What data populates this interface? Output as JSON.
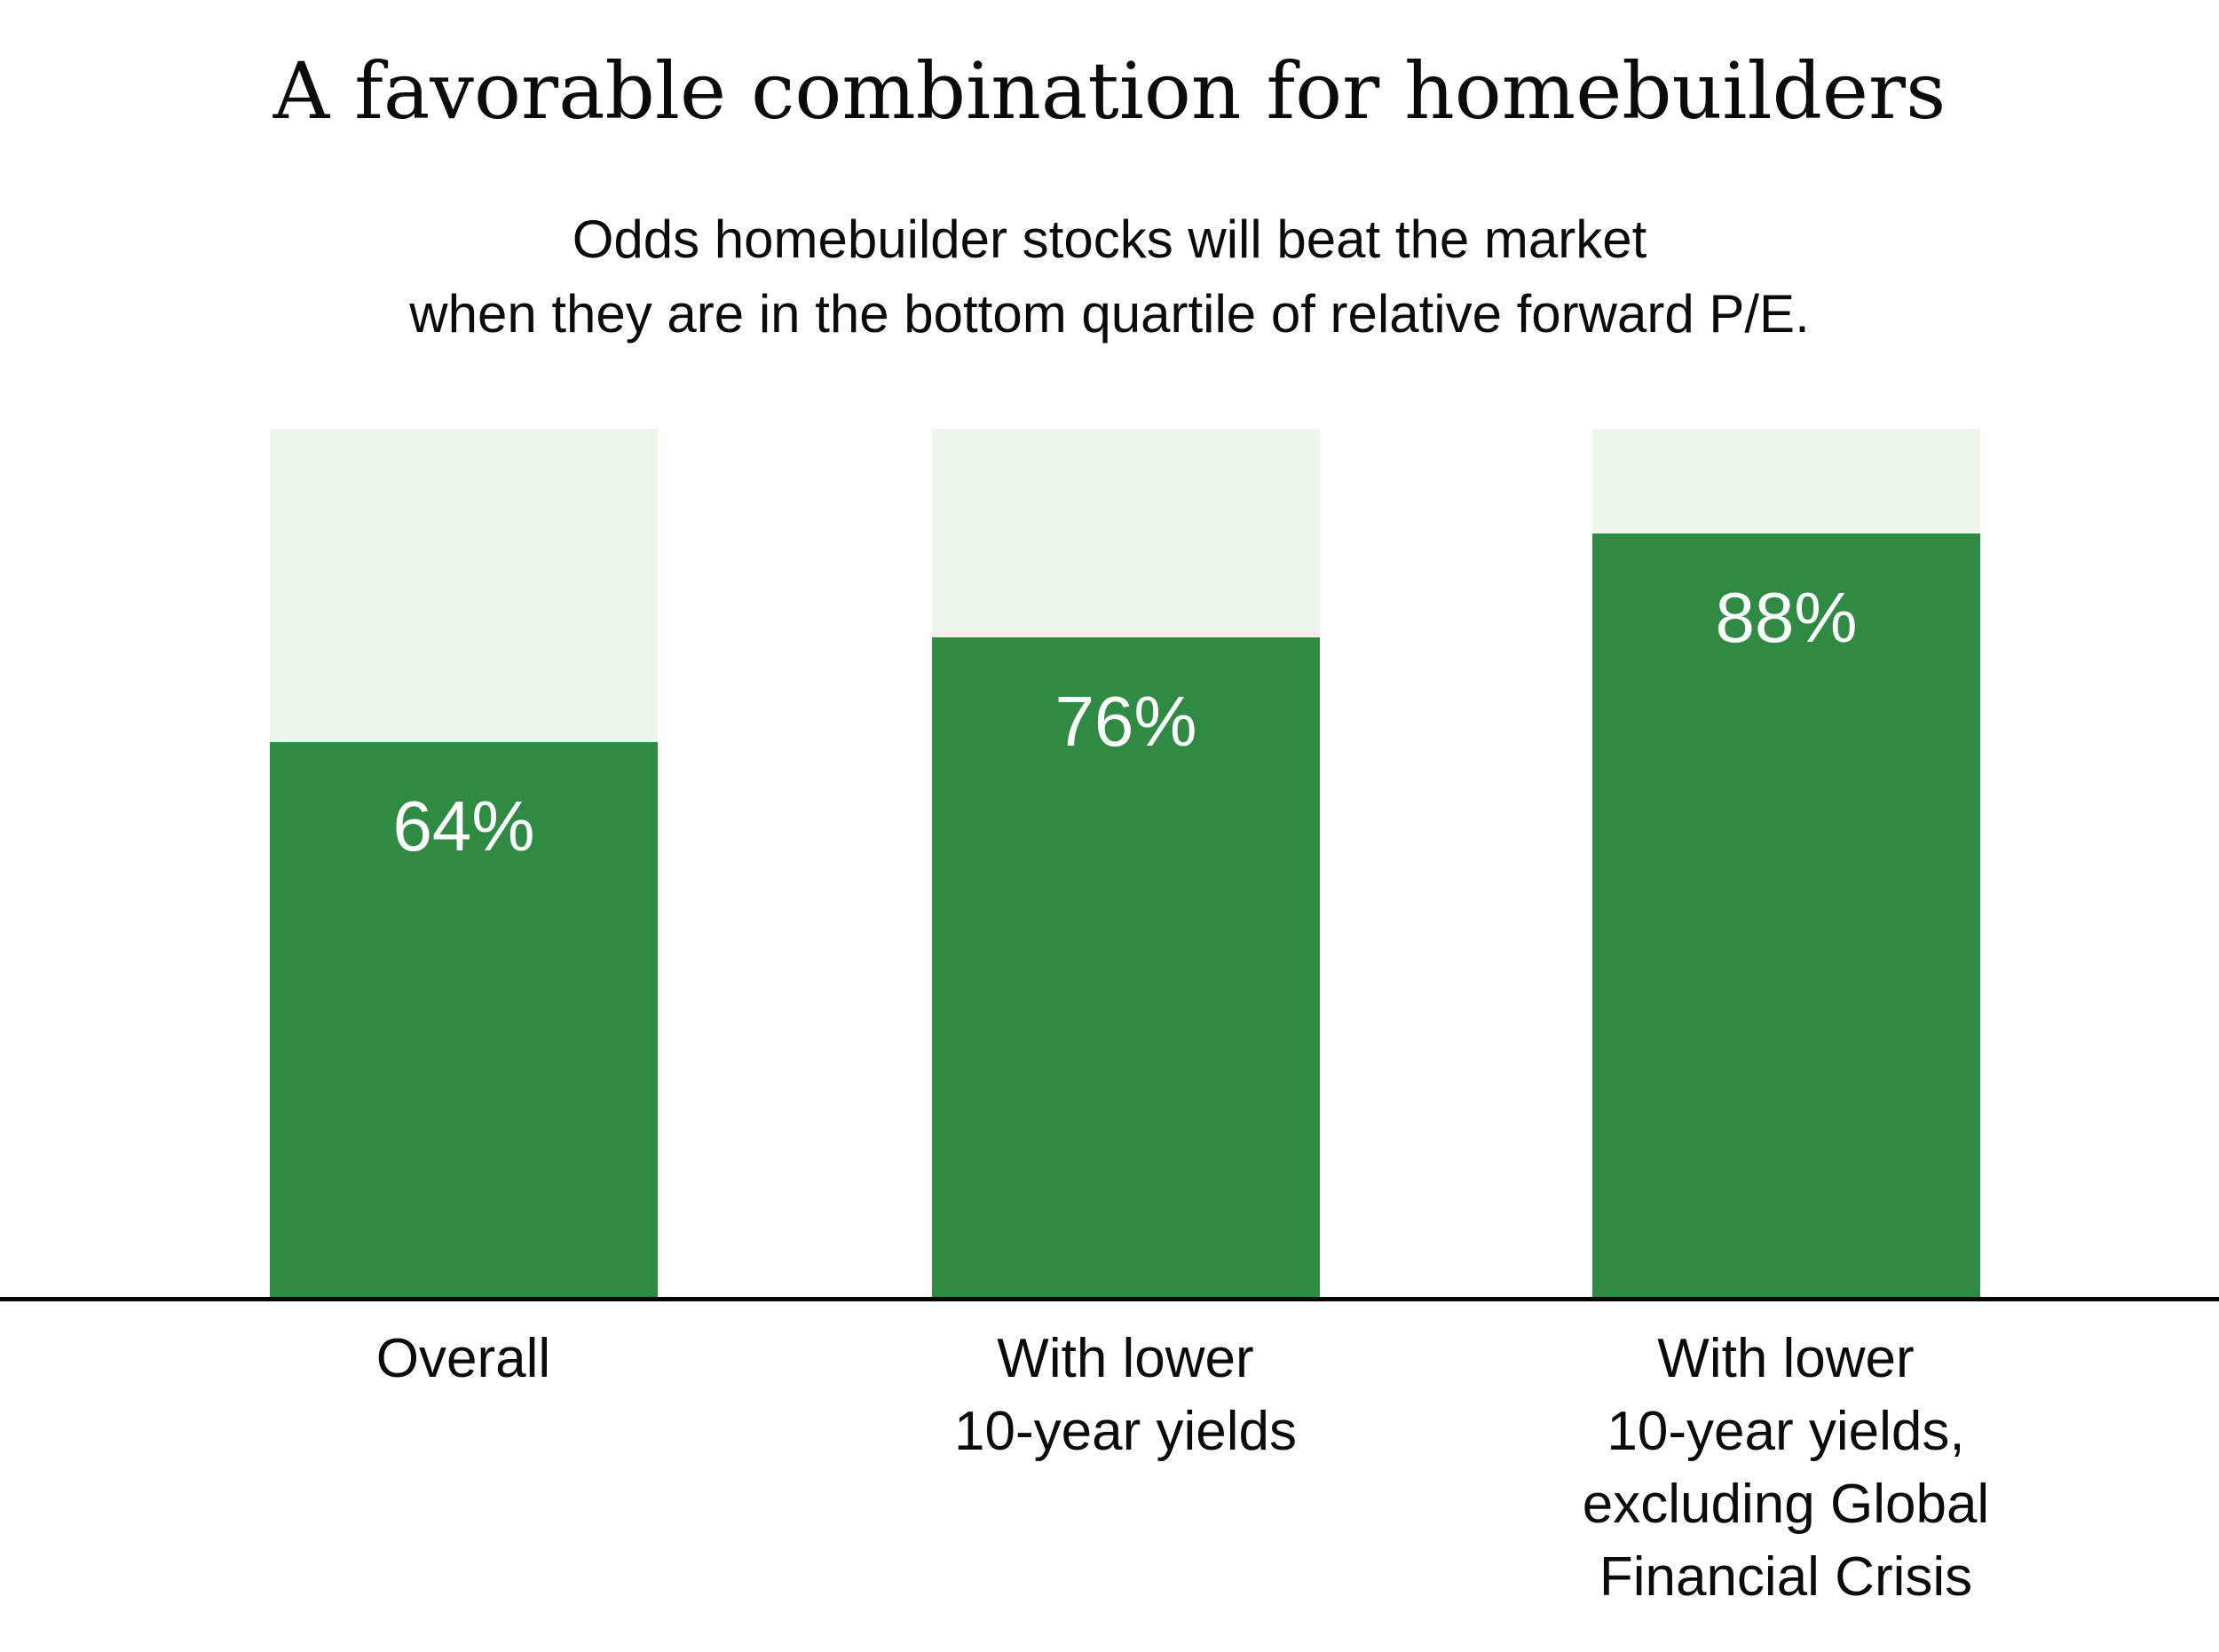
{
  "title": "A favorable combination for homebuilders",
  "subtitle": {
    "line1": "Odds homebuilder stocks will beat the market",
    "line2": "when they are in the bottom quartile of relative forward P/E."
  },
  "colors": {
    "bar_fill": "#2f8a43",
    "bar_track": "#eef5ec",
    "axis_line": "#000000",
    "value_text": "#ffffff",
    "text": "#0b0b0b",
    "background": "#ffffff"
  },
  "chart_data": {
    "type": "bar",
    "title": "A favorable combination for homebuilders",
    "subtitle": "Odds homebuilder stocks will beat the market when they are in the bottom quartile of relative forward P/E.",
    "categories": [
      "Overall",
      "With lower 10-year yields",
      "With lower 10-year yields, excluding Global Financial Crisis"
    ],
    "values": [
      64,
      76,
      88
    ],
    "value_labels": [
      "64%",
      "76%",
      "88%"
    ],
    "ylim": [
      0,
      100
    ],
    "grid": false,
    "legend": false,
    "track_represents": 100,
    "bars": [
      {
        "value": 64,
        "value_label": "64%",
        "label_lines": {
          "l1": "Overall"
        }
      },
      {
        "value": 76,
        "value_label": "76%",
        "label_lines": {
          "l1": "With lower",
          "l2": "10-year yields"
        }
      },
      {
        "value": 88,
        "value_label": "88%",
        "label_lines": {
          "l1": "With lower",
          "l2": "10-year yields,",
          "l3": "excluding Global",
          "l4": "Financial Crisis"
        }
      }
    ]
  }
}
